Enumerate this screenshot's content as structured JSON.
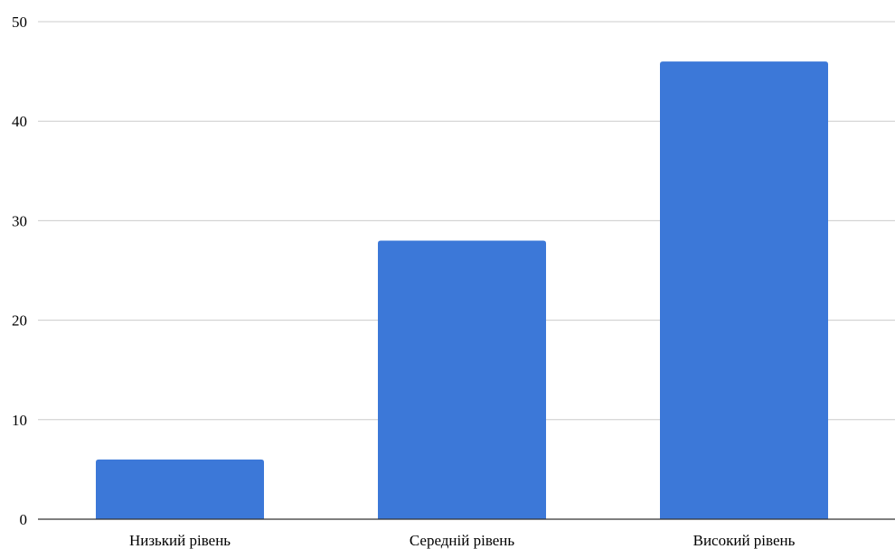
{
  "chart_data": {
    "type": "bar",
    "categories": [
      "Низький рівень",
      "Середній рівень",
      "Високий рівень"
    ],
    "values": [
      6,
      28,
      46
    ],
    "ylim": [
      0,
      50
    ],
    "yticks": [
      0,
      10,
      20,
      30,
      40,
      50
    ],
    "grid": true,
    "legend": "none",
    "colors": {
      "bar": "#3c78d8",
      "grid": "#cccccc",
      "axis": "#333333"
    }
  }
}
